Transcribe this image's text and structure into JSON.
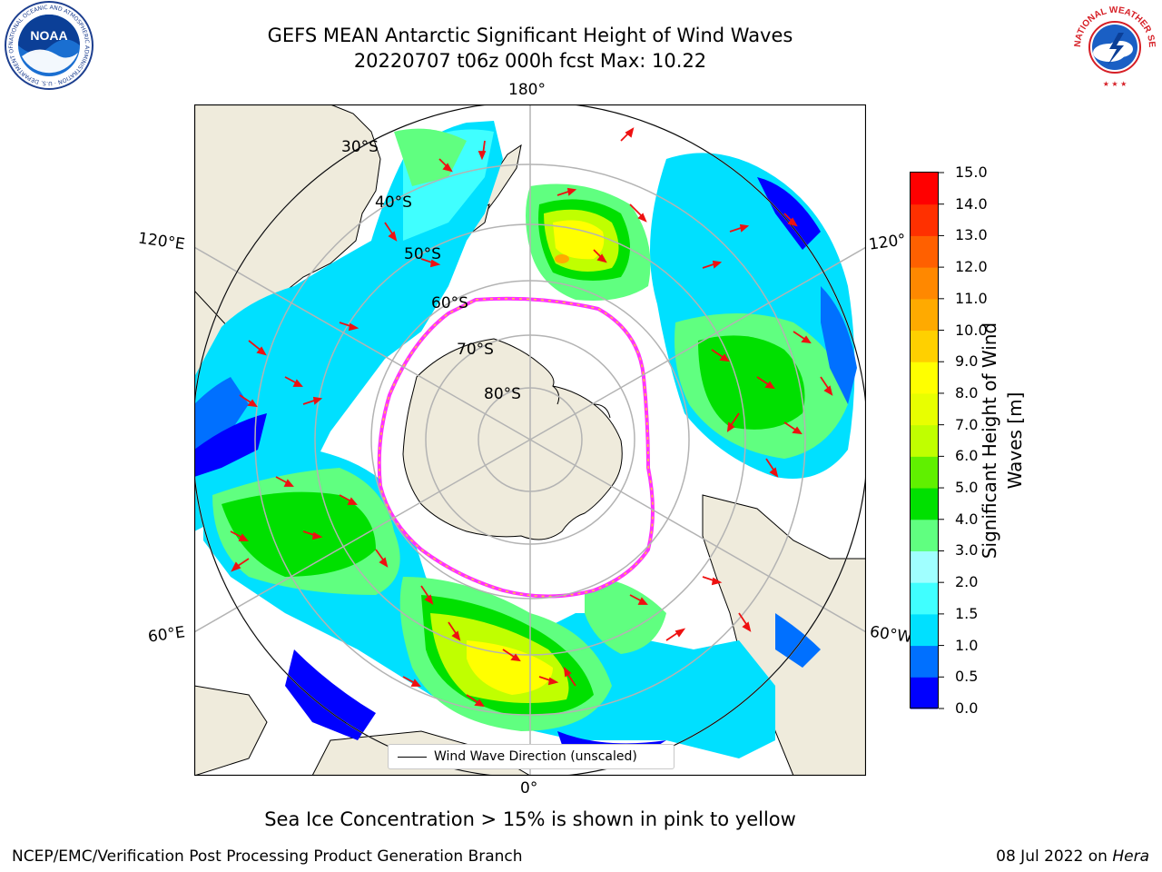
{
  "header": {
    "title_line1": "GEFS MEAN Antarctic Significant Height of Wind Waves",
    "title_line2": "20220707 t06z 000h fcst   Max: 10.22"
  },
  "map": {
    "projection": "south polar stereographic",
    "longitude_labels": {
      "top": "180°",
      "bottom": "0°",
      "left_upper": "120°E",
      "left_lower": "60°E",
      "right_upper": "120°",
      "right_lower": "60°W"
    },
    "latitude_labels": [
      "30°S",
      "40°S",
      "50°S",
      "60°S",
      "70°S",
      "80°S"
    ],
    "land_color": "#efebdc",
    "ice_edge_colors": [
      "#ff33ff",
      "#ffcc33"
    ],
    "arrow_color": "#ee1111",
    "legend_text": "Wind Wave Direction (unscaled)"
  },
  "colorbar": {
    "label": "Significant Height of Wind Waves [m]",
    "label_line1": "Significant Height of Wind",
    "label_line2": "Waves [m]",
    "ticks": [
      "0.0",
      "0.5",
      "1.0",
      "1.5",
      "2.0",
      "3.0",
      "4.0",
      "5.0",
      "6.0",
      "7.0",
      "8.0",
      "9.0",
      "10.0",
      "11.0",
      "12.0",
      "13.0",
      "14.0",
      "15.0"
    ],
    "colors": [
      "#0000ff",
      "#0070ff",
      "#00e0ff",
      "#40ffff",
      "#a0ffff",
      "#60ff80",
      "#00e000",
      "#60f000",
      "#c0ff00",
      "#e8ff00",
      "#ffff00",
      "#ffd000",
      "#ffaa00",
      "#ff8800",
      "#ff6000",
      "#ff3000",
      "#ff0000"
    ]
  },
  "subtitle": "Sea Ice Concentration > 15% is shown in pink to yellow",
  "footer": {
    "left": "NCEP/EMC/Verification Post Processing Product Generation Branch",
    "right_date": "08 Jul 2022 on ",
    "right_host": "Hera"
  },
  "logos": {
    "noaa_text": "NOAA",
    "noaa_ring": "NATIONAL OCEANIC AND ATMOSPHERIC ADMINISTRATION · U.S. DEPARTMENT OF COMMERCE",
    "nws_ring": "NATIONAL WEATHER SERVICE"
  }
}
